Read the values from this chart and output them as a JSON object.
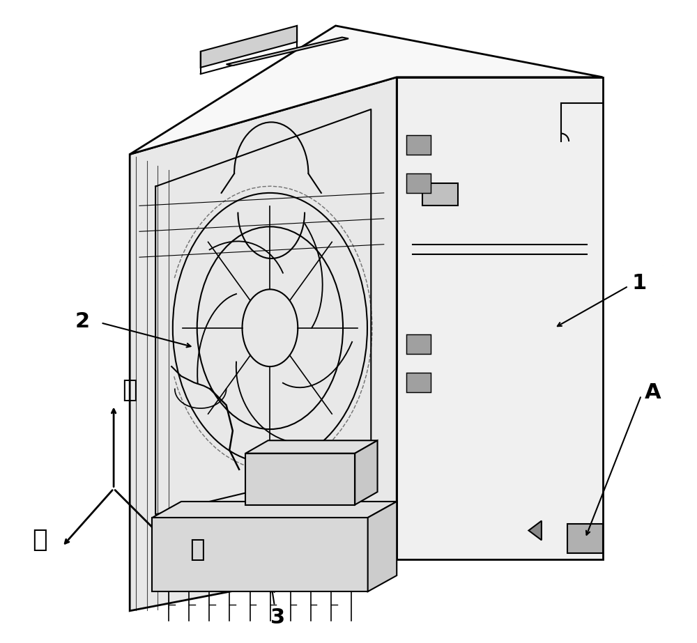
{
  "title": "",
  "background_color": "#ffffff",
  "line_color": "#000000",
  "label_1": "1",
  "label_2": "2",
  "label_3": "3",
  "label_A": "A",
  "axis_label_up": "上",
  "axis_label_front": "前",
  "axis_label_right": "右",
  "font_size_labels": 22,
  "font_size_axis": 26,
  "figure_width": 10.0,
  "figure_height": 9.23,
  "dpi": 100
}
